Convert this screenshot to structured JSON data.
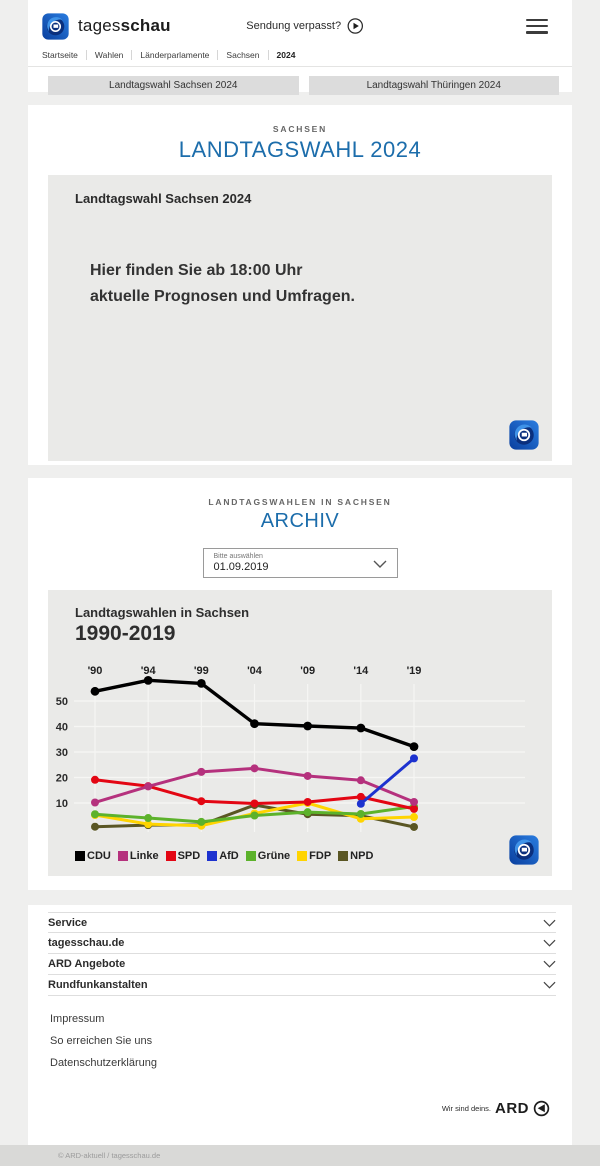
{
  "header": {
    "brand_regular": "tages",
    "brand_bold": "schau",
    "watch_link": "Sendung verpasst?",
    "breadcrumb": [
      "Startseite",
      "Wahlen",
      "Länderparlamente",
      "Sachsen",
      "2024"
    ],
    "tabs": [
      "Landtagswahl Sachsen 2024",
      "Landtagswahl Thüringen 2024"
    ]
  },
  "hero": {
    "kicker": "SACHSEN",
    "title": "LANDTAGSWAHL 2024",
    "teaser_title": "Landtagswahl Sachsen 2024",
    "message_line1": "Hier finden Sie ab 18:00 Uhr",
    "message_line2": "aktuelle Prognosen und Umfragen."
  },
  "archive": {
    "kicker": "LANDTAGSWAHLEN IN SACHSEN",
    "title": "ARCHIV",
    "select_label": "Bitte auswählen",
    "select_value": "01.09.2019"
  },
  "chart_data": {
    "type": "line",
    "title": "Landtagswahlen in Sachsen",
    "subtitle": "1990-2019",
    "categories": [
      "'90",
      "'94",
      "'99",
      "'04",
      "'09",
      "'14",
      "'19"
    ],
    "ylabel": "",
    "xlabel": "",
    "ylim": [
      0,
      62
    ],
    "ygrid": [
      10,
      20,
      30,
      40,
      50
    ],
    "grid": true,
    "legend_position": "bottom",
    "series": [
      {
        "name": "CDU",
        "color": "#000000",
        "values": [
          53.8,
          58.1,
          56.9,
          41.1,
          40.2,
          39.4,
          32.1
        ]
      },
      {
        "name": "Linke",
        "color": "#b5317d",
        "values": [
          10.2,
          16.5,
          22.2,
          23.6,
          20.6,
          18.9,
          10.4
        ]
      },
      {
        "name": "SPD",
        "color": "#e30613",
        "values": [
          19.1,
          16.6,
          10.7,
          9.8,
          10.4,
          12.4,
          7.7
        ]
      },
      {
        "name": "AfD",
        "color": "#1d32cf",
        "values": [
          null,
          null,
          null,
          null,
          null,
          9.7,
          27.5
        ]
      },
      {
        "name": "Grüne",
        "color": "#5cb22b",
        "values": [
          5.6,
          4.1,
          2.6,
          5.1,
          6.4,
          5.7,
          8.6
        ]
      },
      {
        "name": "FDP",
        "color": "#ffd400",
        "values": [
          5.3,
          1.7,
          1.1,
          5.9,
          10.0,
          3.8,
          4.5
        ]
      },
      {
        "name": "NPD",
        "color": "#5a5623",
        "values": [
          0.7,
          1.3,
          1.4,
          9.2,
          5.6,
          5.0,
          0.6
        ]
      }
    ]
  },
  "footer": {
    "accordion": [
      "Service",
      "tagesschau.de",
      "ARD Angebote",
      "Rundfunkanstalten"
    ],
    "links": [
      "Impressum",
      "So erreichen Sie uns",
      "Datenschutzerklärung"
    ],
    "ard_claim": "Wir sind deins.",
    "ard_brand": "ARD",
    "copyright": "© ARD-aktuell / tagesschau.de"
  },
  "colors": {
    "accent_blue": "#1c6dab",
    "page_background": "#efefee",
    "box_gray": "#eaeae8",
    "button_gray": "#dcdcdc"
  }
}
